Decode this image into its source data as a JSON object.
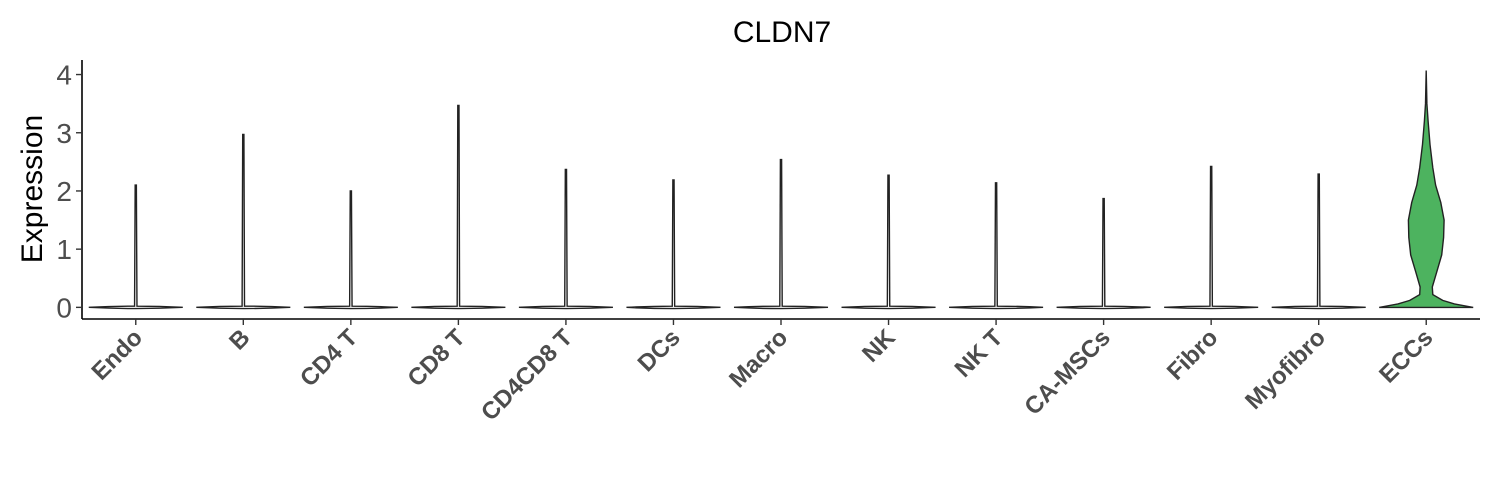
{
  "chart_data": {
    "type": "violin",
    "title": "CLDN7",
    "xlabel": "",
    "ylabel": "Expression",
    "ylim": [
      -0.2,
      4.25
    ],
    "yticks": [
      0,
      1,
      2,
      3,
      4
    ],
    "grid": false,
    "legend": "none",
    "colors": {
      "highlight": "#4db35f",
      "default": "#ffffff",
      "outline": "#222222"
    },
    "categories": [
      "Endo",
      "B",
      "CD4 T",
      "CD8 T",
      "CD4CD8 T",
      "DCs",
      "Macro",
      "NK",
      "NK T",
      "CA-MSCs",
      "Fibro",
      "Myofibro",
      "ECCs"
    ],
    "max_values": [
      2.1,
      2.97,
      2.0,
      3.47,
      2.37,
      2.19,
      2.54,
      2.27,
      2.14,
      1.87,
      2.42,
      2.29,
      4.07
    ],
    "highlight": "ECCs",
    "ecc_profile": [
      [
        0.0,
        1.0
      ],
      [
        0.06,
        0.6
      ],
      [
        0.12,
        0.35
      ],
      [
        0.22,
        0.14
      ],
      [
        0.35,
        0.13
      ],
      [
        0.6,
        0.22
      ],
      [
        0.9,
        0.33
      ],
      [
        1.2,
        0.37
      ],
      [
        1.5,
        0.38
      ],
      [
        1.8,
        0.31
      ],
      [
        2.1,
        0.2
      ],
      [
        2.4,
        0.14
      ],
      [
        2.8,
        0.08
      ],
      [
        3.2,
        0.04
      ],
      [
        3.5,
        0.015
      ],
      [
        4.07,
        0.0
      ]
    ]
  }
}
